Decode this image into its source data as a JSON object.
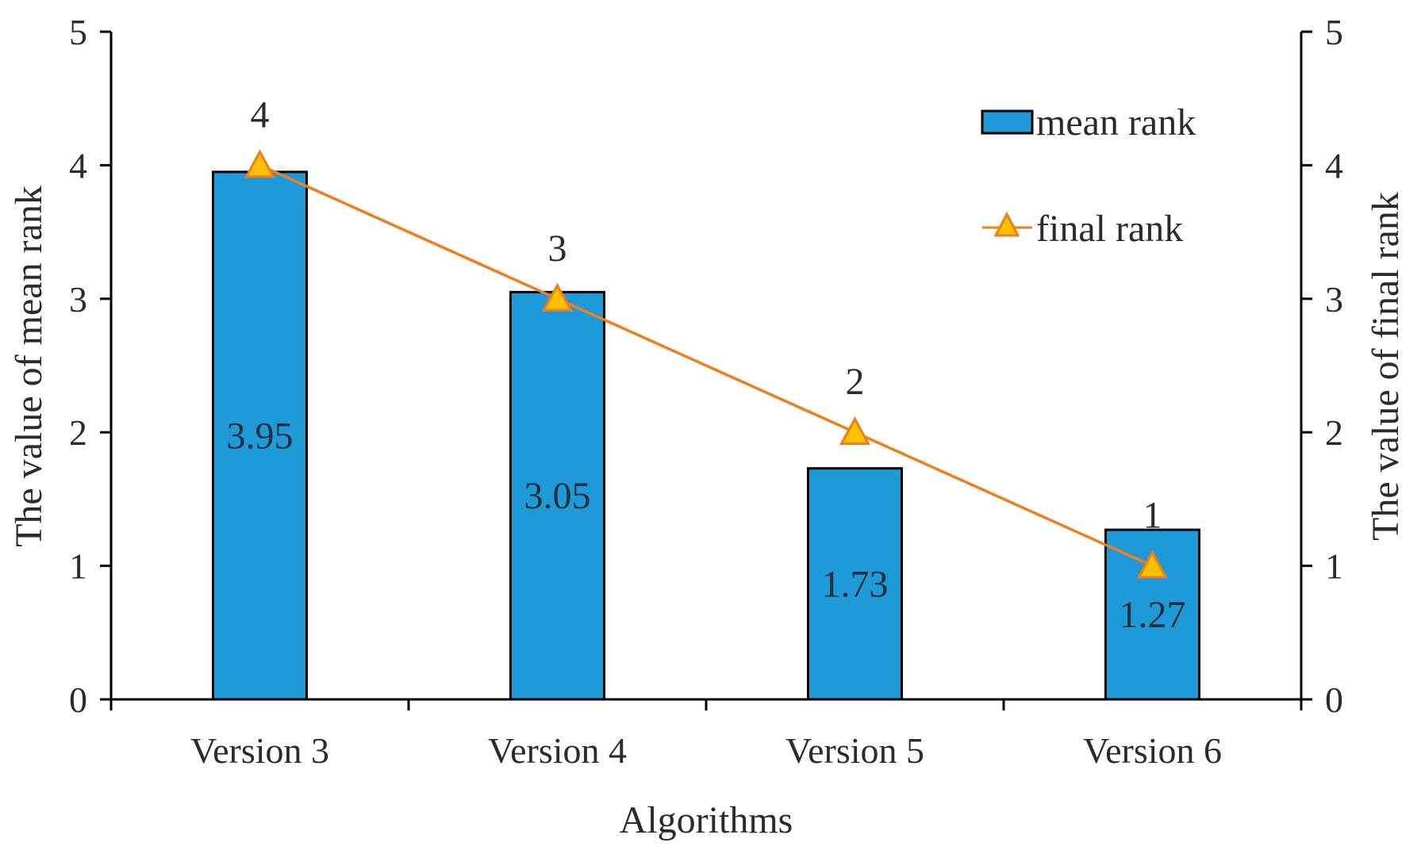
{
  "chart_data": {
    "type": "bar",
    "categories": [
      "Version 3",
      "Version 4",
      "Version 5",
      "Version 6"
    ],
    "series": [
      {
        "name": "mean rank",
        "type": "bar",
        "axis": "left",
        "values": [
          3.95,
          3.05,
          1.73,
          1.27
        ],
        "labels": [
          "3.95",
          "3.05",
          "1.73",
          "1.27"
        ]
      },
      {
        "name": "final rank",
        "type": "line",
        "axis": "right",
        "marker": "triangle",
        "values": [
          4,
          3,
          2,
          1
        ],
        "labels": [
          "4",
          "3",
          "2",
          "1"
        ]
      }
    ],
    "xlabel": "Algorithms",
    "ylabel": "The value of mean rank",
    "y2label": "The value of final rank",
    "ylim": [
      0,
      5
    ],
    "y2lim": [
      0,
      5
    ],
    "yticks": [
      "0",
      "1",
      "2",
      "3",
      "4",
      "5"
    ],
    "y2ticks": [
      "0",
      "1",
      "2",
      "3",
      "4",
      "5"
    ],
    "grid": false,
    "legend_position": "top-right",
    "colors": {
      "bar": "#1e9ad9",
      "bar_edge": "#000000",
      "line": "#f07c1b",
      "marker_fill": "#ffc000"
    }
  }
}
